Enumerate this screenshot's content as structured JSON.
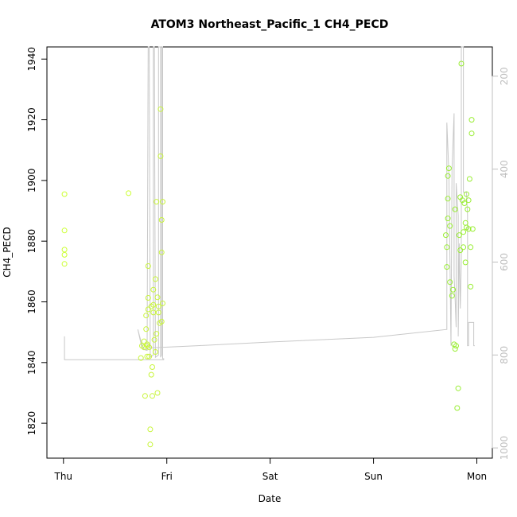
{
  "chart_data": {
    "type": "scatter",
    "title": "ATOM3 Northeast_Pacific_1 CH4_PECD",
    "xlabel": "Date",
    "ylabel": "CH4_PECD",
    "x_ticks": [
      "Thu",
      "Fri",
      "Sat",
      "Sun",
      "Mon"
    ],
    "xlim": [
      -0.16,
      4.15
    ],
    "ylim": [
      1808.5,
      1944
    ],
    "y_ticks": [
      1820,
      1840,
      1860,
      1880,
      1900,
      1920,
      1940
    ],
    "y2_ticks": [
      200,
      400,
      600,
      800,
      1000
    ],
    "y2lim": [
      137,
      1022
    ],
    "grid": false,
    "series": [
      {
        "kind": "points",
        "color": "#ccff33",
        "points": [
          [
            0.01,
            1895.5
          ],
          [
            0.01,
            1883.5
          ],
          [
            0.01,
            1877.2
          ],
          [
            0.01,
            1875.5
          ],
          [
            0.01,
            1872.5
          ],
          [
            0.63,
            1895.8
          ]
        ]
      },
      {
        "kind": "points",
        "color": "#c8f53a",
        "points": [
          [
            0.75,
            1841.5
          ],
          [
            0.76,
            1845.5
          ],
          [
            0.78,
            1847
          ],
          [
            0.78,
            1845
          ],
          [
            0.79,
            1829
          ],
          [
            0.8,
            1855.5
          ],
          [
            0.8,
            1851
          ],
          [
            0.81,
            1846
          ],
          [
            0.81,
            1845.5
          ],
          [
            0.81,
            1842
          ],
          [
            0.82,
            1871.8
          ],
          [
            0.82,
            1861.3
          ],
          [
            0.82,
            1857.5
          ],
          [
            0.83,
            1845
          ],
          [
            0.83,
            1842
          ],
          [
            0.84,
            1818
          ],
          [
            0.84,
            1813
          ],
          [
            0.85,
            1858.5
          ],
          [
            0.85,
            1836
          ],
          [
            0.86,
            1838.5
          ],
          [
            0.86,
            1829
          ],
          [
            0.87,
            1864
          ],
          [
            0.87,
            1859
          ],
          [
            0.87,
            1856.5
          ],
          [
            0.88,
            1847.5
          ],
          [
            0.89,
            1867.5
          ],
          [
            0.89,
            1843.5
          ],
          [
            0.9,
            1893
          ],
          [
            0.9,
            1849.5
          ],
          [
            0.91,
            1861.5
          ],
          [
            0.91,
            1830
          ],
          [
            0.92,
            1858.5
          ],
          [
            0.92,
            1856.5
          ],
          [
            0.93,
            1853
          ],
          [
            0.94,
            1923.5
          ],
          [
            0.94,
            1908
          ],
          [
            0.95,
            1887
          ],
          [
            0.95,
            1876.3
          ],
          [
            0.95,
            1853.5
          ],
          [
            0.96,
            1893
          ],
          [
            0.96,
            1859.5
          ]
        ]
      },
      {
        "kind": "points",
        "color": "#99ee33",
        "points": [
          [
            3.7,
            1882
          ],
          [
            3.71,
            1878
          ],
          [
            3.71,
            1871.5
          ],
          [
            3.72,
            1901.5
          ],
          [
            3.72,
            1894
          ],
          [
            3.72,
            1887.5
          ],
          [
            3.73,
            1904
          ],
          [
            3.74,
            1866.5
          ],
          [
            3.74,
            1885
          ],
          [
            3.76,
            1862
          ],
          [
            3.77,
            1864
          ],
          [
            3.78,
            1846
          ],
          [
            3.79,
            1844.5
          ],
          [
            3.79,
            1890.5
          ],
          [
            3.8,
            1845.5
          ],
          [
            3.81,
            1825
          ],
          [
            3.82,
            1831.5
          ],
          [
            3.83,
            1882
          ],
          [
            3.84,
            1894.5
          ],
          [
            3.84,
            1877
          ],
          [
            3.85,
            1938.5
          ],
          [
            3.86,
            1893.5
          ],
          [
            3.87,
            1883
          ],
          [
            3.87,
            1878
          ],
          [
            3.88,
            1892.5
          ],
          [
            3.89,
            1886
          ],
          [
            3.89,
            1873
          ],
          [
            3.9,
            1895.5
          ],
          [
            3.9,
            1884.5
          ],
          [
            3.91,
            1890.5
          ],
          [
            3.92,
            1893.5
          ],
          [
            3.92,
            1884
          ],
          [
            3.93,
            1900.5
          ],
          [
            3.94,
            1878
          ],
          [
            3.94,
            1865
          ],
          [
            3.95,
            1920
          ],
          [
            3.95,
            1915.5
          ],
          [
            3.96,
            1884
          ]
        ]
      },
      {
        "kind": "line",
        "axis": "right",
        "color": "#c8c8c8",
        "points": [
          [
            0.01,
            760
          ],
          [
            0.01,
            810
          ],
          [
            0.97,
            810
          ],
          [
            0.97,
            808
          ],
          [
            0.96,
            808
          ],
          [
            0.96,
            137
          ],
          [
            0.95,
            137
          ],
          [
            0.95,
            800
          ],
          [
            0.94,
            805
          ],
          [
            0.94,
            137
          ],
          [
            0.92,
            137
          ],
          [
            0.92,
            800
          ],
          [
            0.89,
            805
          ],
          [
            0.88,
            137
          ],
          [
            0.87,
            137
          ],
          [
            0.87,
            800
          ],
          [
            0.84,
            805
          ],
          [
            0.83,
            137
          ],
          [
            0.82,
            137
          ],
          [
            0.81,
            790
          ],
          [
            0.76,
            785
          ],
          [
            0.74,
            765
          ],
          [
            0.72,
            745
          ],
          [
            0.74,
            762
          ],
          [
            0.76,
            778
          ],
          [
            0.78,
            787
          ],
          [
            0.8,
            790
          ],
          [
            0.82,
            785
          ],
          [
            1.3,
            780
          ],
          [
            2.0,
            772
          ],
          [
            3.0,
            762
          ],
          [
            3.71,
            745
          ],
          [
            3.71,
            300
          ],
          [
            3.73,
            410
          ],
          [
            3.75,
            780
          ],
          [
            3.76,
            400
          ],
          [
            3.78,
            280
          ],
          [
            3.78,
            630
          ],
          [
            3.79,
            680
          ],
          [
            3.8,
            740
          ],
          [
            3.8,
            430
          ],
          [
            3.82,
            500
          ],
          [
            3.82,
            760
          ],
          [
            3.83,
            560
          ],
          [
            3.84,
            700
          ],
          [
            3.85,
            600
          ],
          [
            3.85,
            137
          ],
          [
            3.87,
            137
          ],
          [
            3.87,
            450
          ],
          [
            3.9,
            450
          ],
          [
            3.91,
            500
          ],
          [
            3.91,
            780
          ],
          [
            3.92,
            780
          ],
          [
            3.92,
            730
          ],
          [
            3.97,
            730
          ],
          [
            3.97,
            780
          ],
          [
            3.98,
            780
          ]
        ]
      }
    ]
  }
}
